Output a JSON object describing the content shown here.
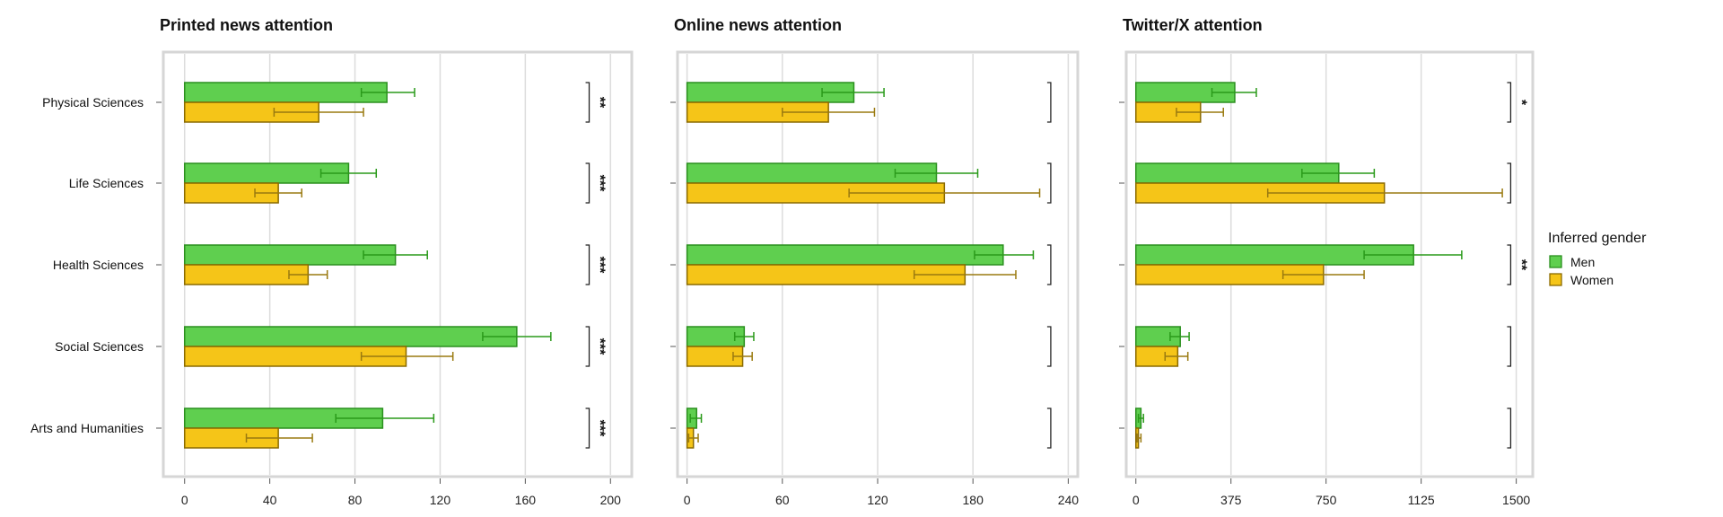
{
  "chart_data": {
    "type": "bar",
    "orientation": "horizontal",
    "categories": [
      "Physical Sciences",
      "Life Sciences",
      "Health Sciences",
      "Social Sciences",
      "Arts and Humanities"
    ],
    "legend": {
      "title": "Inferred gender",
      "position": "right",
      "entries": [
        "Men",
        "Women"
      ]
    },
    "colors": {
      "Men": "#5fcf4f",
      "Women": "#f5c518",
      "Men_border": "#2a8f1e",
      "Women_border": "#8a6a00",
      "Men_error": "#2a9a1a",
      "Women_error": "#9a7a10"
    },
    "grid": true,
    "panels": [
      {
        "title": "Printed news attention",
        "xlim": [
          -10,
          210
        ],
        "ticks": [
          "0",
          "40",
          "80",
          "120",
          "160",
          "200"
        ],
        "tick_values": [
          0,
          40,
          80,
          120,
          160,
          200
        ],
        "bracket_at": 190,
        "series": [
          {
            "name": "Men",
            "values": [
              95,
              77,
              99,
              156,
              93
            ],
            "err_low": [
              83,
              64,
              84,
              140,
              71
            ],
            "err_high": [
              108,
              90,
              114,
              172,
              117
            ]
          },
          {
            "name": "Women",
            "values": [
              63,
              44,
              58,
              104,
              44
            ],
            "err_low": [
              42,
              33,
              49,
              83,
              29
            ],
            "err_high": [
              84,
              55,
              67,
              126,
              60
            ]
          }
        ],
        "significance": [
          "**",
          "***",
          "***",
          "***",
          "***"
        ]
      },
      {
        "title": "Online news attention",
        "xlim": [
          -6,
          246
        ],
        "ticks": [
          "0",
          "60",
          "120",
          "180",
          "240"
        ],
        "tick_values": [
          0,
          60,
          120,
          180,
          240
        ],
        "bracket_at": 229,
        "series": [
          {
            "name": "Men",
            "values": [
              105,
              157,
              199,
              36,
              6
            ],
            "err_low": [
              85,
              131,
              181,
              30,
              2
            ],
            "err_high": [
              124,
              183,
              218,
              42,
              9
            ]
          },
          {
            "name": "Women",
            "values": [
              89,
              162,
              175,
              35,
              4
            ],
            "err_low": [
              60,
              102,
              143,
              29,
              1
            ],
            "err_high": [
              118,
              222,
              207,
              41,
              7
            ]
          }
        ],
        "significance": [
          "",
          "",
          "",
          "",
          ""
        ]
      },
      {
        "title": "Twitter/X attention",
        "xlim": [
          -38,
          1565
        ],
        "ticks": [
          "0",
          "375",
          "750",
          "1125",
          "1500"
        ],
        "tick_values": [
          0,
          375,
          750,
          1125,
          1500
        ],
        "bracket_at": 1478,
        "series": [
          {
            "name": "Men",
            "values": [
              390,
              800,
              1095,
              175,
              20
            ],
            "err_low": [
              300,
              655,
              900,
              135,
              10
            ],
            "err_high": [
              475,
              940,
              1285,
              210,
              30
            ]
          },
          {
            "name": "Women",
            "values": [
              255,
              980,
              740,
              165,
              10
            ],
            "err_low": [
              160,
              520,
              580,
              115,
              5
            ],
            "err_high": [
              345,
              1445,
              900,
              205,
              20
            ]
          }
        ],
        "significance": [
          "*",
          "",
          "**",
          "",
          ""
        ]
      }
    ]
  }
}
